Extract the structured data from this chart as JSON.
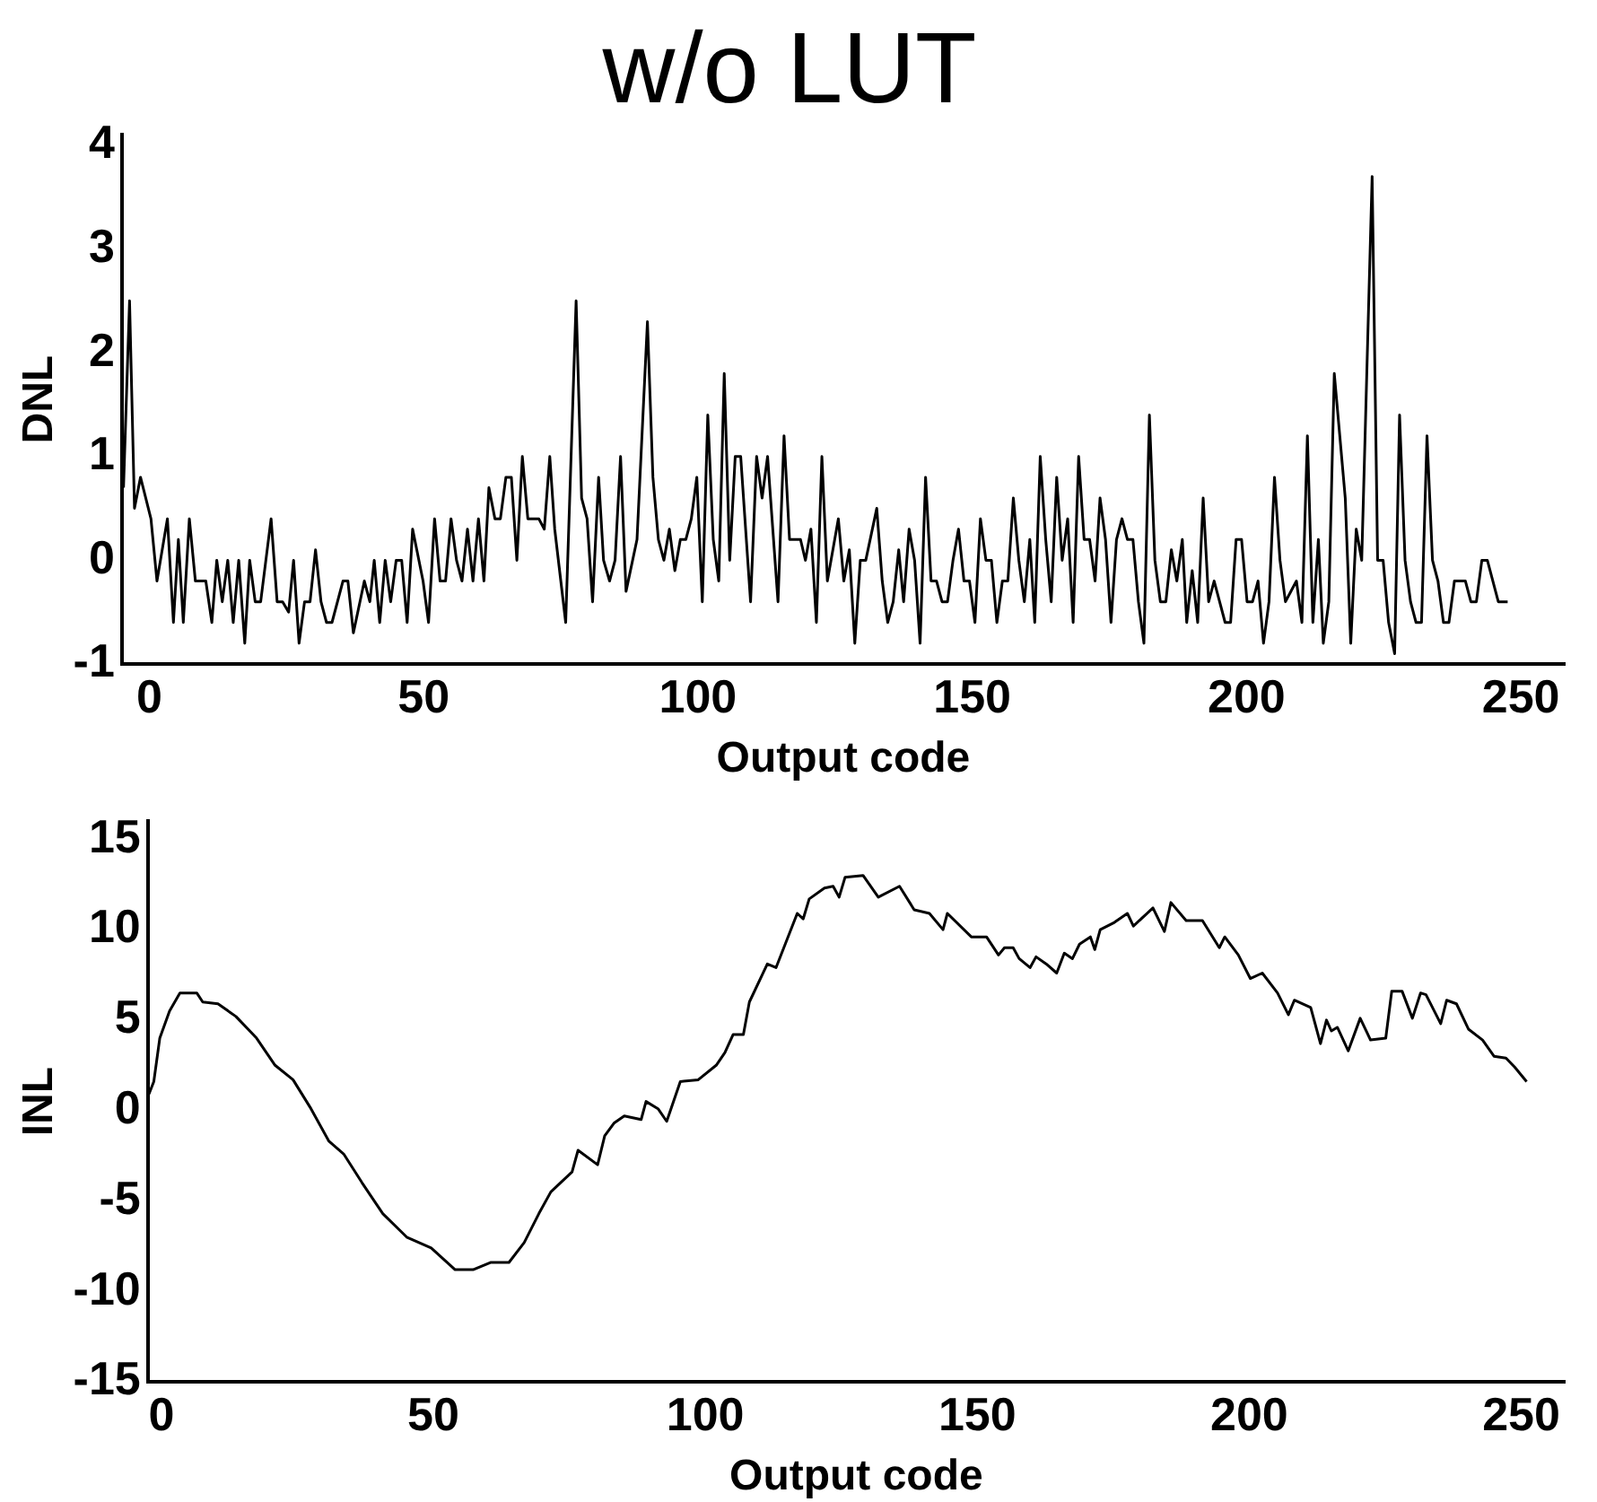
{
  "chart_data": [
    {
      "type": "line",
      "title": "w/o LUT",
      "xlabel": "Output code",
      "ylabel": "DNL",
      "color": "#000000",
      "x": [
        -4.7,
        -3.6,
        -2.7,
        -1.6,
        0.3,
        1.4,
        3.3,
        4.4,
        5.3,
        6.2,
        7.3,
        8.4,
        10.3,
        11.4,
        12.3,
        13.3,
        14.3,
        15.3,
        16.3,
        17.4,
        18.3,
        19.3,
        20.3,
        22.2,
        23.3,
        24.3,
        25.4,
        26.3,
        27.3,
        28.3,
        29.3,
        30.3,
        31.3,
        32.3,
        33.3,
        35.3,
        36.2,
        37.2,
        39.2,
        40.2,
        41.0,
        42.0,
        43.0,
        44.0,
        45.0,
        46.0,
        47.0,
        48.0,
        49.9,
        50.9,
        52.0,
        53.0,
        54.0,
        55.0,
        56.0,
        57.0,
        58.0,
        59.0,
        60.0,
        61.0,
        61.9,
        63.0,
        64.0,
        65.0,
        66.0,
        67.0,
        68.0,
        69.0,
        71.0,
        72.0,
        73.0,
        73.9,
        75.9,
        77.8,
        78.8,
        79.8,
        80.8,
        81.9,
        82.8,
        83.9,
        84.9,
        85.9,
        86.9,
        88.9,
        90.8,
        91.8,
        92.8,
        93.8,
        94.8,
        95.8,
        96.8,
        97.8,
        98.8,
        99.8,
        100.8,
        101.8,
        102.8,
        103.8,
        104.8,
        105.8,
        106.8,
        107.8,
        109.6,
        110.7,
        111.7,
        112.7,
        114.6,
        115.7,
        116.7,
        118.7,
        119.6,
        120.6,
        121.6,
        122.6,
        123.6,
        125.6,
        126.6,
        127.6,
        128.6,
        129.6,
        130.6,
        132.6,
        133.6,
        134.6,
        135.6,
        136.6,
        137.5,
        138.5,
        139.5,
        140.5,
        141.5,
        142.5,
        143.5,
        144.5,
        145.5,
        146.5,
        147.5,
        148.5,
        149.5,
        150.5,
        151.5,
        152.5,
        153.5,
        154.5,
        155.5,
        156.5,
        157.5,
        158.5,
        159.5,
        160.5,
        161.4,
        162.4,
        163.4,
        164.4,
        165.4,
        166.4,
        167.4,
        168.4,
        169.4,
        170.4,
        171.4,
        172.4,
        173.3,
        174.3,
        175.3,
        176.3,
        177.3,
        178.3,
        179.3,
        180.3,
        181.3,
        182.3,
        183.3,
        184.3,
        185.3,
        186.3,
        187.3,
        188.3,
        189.1,
        190.1,
        191.1,
        192.1,
        193.1,
        194.1,
        195.1,
        196.1,
        197.1,
        198.1,
        199.1,
        200.1,
        201.1,
        202.1,
        203.1,
        204.1,
        205.1,
        206.1,
        207.1,
        208.1,
        209.1,
        210.1,
        211.1,
        212.1,
        213.1,
        214.0,
        215.0,
        216.0,
        217.0,
        218.0,
        219.0,
        220.0,
        221.0,
        222.9,
        223.9,
        224.9,
        225.9,
        227.0,
        227.9,
        228.9,
        229.9,
        230.9,
        231.9,
        232.9,
        233.9,
        234.9,
        235.9,
        236.9,
        237.9,
        239.9,
        240.9,
        241.9,
        242.9,
        243.9,
        245.9,
        247.6
      ],
      "values": [
        0.7,
        2.5,
        0.5,
        0.8,
        0.4,
        -0.2,
        0.4,
        -0.6,
        0.2,
        -0.6,
        0.4,
        -0.2,
        -0.2,
        -0.6,
        0,
        -0.4,
        0,
        -0.6,
        0,
        -0.8,
        0,
        -0.4,
        -0.4,
        0.4,
        -0.4,
        -0.4,
        -0.5,
        0,
        -0.8,
        -0.4,
        -0.4,
        0.1,
        -0.4,
        -0.6,
        -0.6,
        -0.2,
        -0.2,
        -0.7,
        -0.2,
        -0.4,
        0,
        -0.6,
        0,
        -0.4,
        0,
        0,
        -0.6,
        0.3,
        -0.2,
        -0.6,
        0.4,
        -0.2,
        -0.2,
        0.4,
        0,
        -0.2,
        0.3,
        -0.2,
        0.4,
        -0.2,
        0.7,
        0.4,
        0.4,
        0.8,
        0.8,
        0,
        1,
        0.4,
        0.4,
        0.3,
        1,
        0.3,
        -0.6,
        2.5,
        0.6,
        0.4,
        -0.4,
        0.8,
        0,
        -0.2,
        0,
        1,
        -0.3,
        0.2,
        2.3,
        0.8,
        0.2,
        0,
        0.3,
        -0.1,
        0.2,
        0.2,
        0.4,
        0.8,
        -0.4,
        1.4,
        0.2,
        -0.2,
        1.8,
        0,
        1,
        1,
        -0.4,
        1,
        0.6,
        1,
        -0.4,
        1.2,
        0.2,
        0.2,
        0,
        0.3,
        -0.6,
        1,
        -0.2,
        0.4,
        -0.2,
        0.1,
        -0.8,
        0,
        0,
        0.5,
        -0.2,
        -0.6,
        -0.4,
        0.1,
        -0.4,
        0.3,
        0,
        -0.8,
        0.8,
        -0.2,
        -0.2,
        -0.4,
        -0.4,
        0,
        0.3,
        -0.2,
        -0.2,
        -0.6,
        0.4,
        0,
        0,
        -0.6,
        -0.2,
        -0.2,
        0.6,
        0,
        -0.4,
        0.2,
        -0.6,
        1,
        0.2,
        -0.4,
        0.8,
        0,
        0.4,
        -0.6,
        1,
        0.2,
        0.2,
        -0.2,
        0.6,
        0.2,
        -0.6,
        0.2,
        0.4,
        0.2,
        0.2,
        -0.4,
        -0.8,
        1.4,
        0,
        -0.4,
        -0.4,
        0.1,
        -0.2,
        0.2,
        -0.6,
        -0.1,
        -0.6,
        0.6,
        -0.4,
        -0.2,
        -0.4,
        -0.6,
        -0.6,
        0.2,
        0.2,
        -0.4,
        -0.4,
        -0.2,
        -0.8,
        -0.4,
        0.8,
        0,
        -0.4,
        -0.3,
        -0.2,
        -0.6,
        1.2,
        -0.6,
        0.2,
        -0.8,
        -0.4,
        1.8,
        1.2,
        0.6,
        -0.8,
        0.3,
        0,
        3.7,
        0,
        0,
        -0.6,
        -0.9,
        1.4,
        0,
        -0.4,
        -0.6,
        -0.6,
        1.2,
        0,
        -0.2,
        -0.6,
        -0.6,
        -0.2,
        -0.2,
        -0.4,
        -0.4,
        0,
        0,
        -0.4,
        -0.4
      ],
      "xlim": [
        -5,
        258
      ],
      "xticks": [
        0,
        50,
        100,
        150,
        200,
        250
      ],
      "ylim": [
        -1,
        4.1
      ],
      "yticks": [
        -1,
        0,
        1,
        2,
        3,
        4
      ],
      "grid": false,
      "legend": false
    },
    {
      "type": "line",
      "xlabel": "Output code",
      "ylabel": "INL",
      "color": "#000000",
      "x": [
        -2.3,
        -1.4,
        -0.3,
        1.5,
        3.4,
        6.5,
        7.6,
        10.4,
        13.7,
        17.5,
        20.9,
        24.2,
        27.5,
        30.8,
        33.5,
        36.9,
        40.7,
        45.1,
        49.6,
        54.0,
        57.3,
        60.6,
        63.9,
        66.7,
        69.4,
        71.6,
        75.5,
        76.6,
        80.2,
        81.5,
        83.2,
        85.1,
        88.2,
        89.1,
        91.3,
        92.9,
        95.4,
        98.7,
        102.0,
        103.6,
        105.1,
        107.0,
        108.1,
        111.4,
        113.0,
        116.9,
        118.0,
        119.1,
        121.9,
        123.5,
        124.6,
        125.7,
        129.0,
        131.8,
        135.7,
        138.4,
        141.2,
        143.7,
        144.5,
        148.9,
        151.7,
        153.9,
        155.0,
        156.6,
        157.7,
        159.7,
        160.8,
        162.7,
        164.6,
        166.0,
        167.5,
        168.8,
        170.8,
        171.6,
        172.6,
        175.2,
        177.6,
        178.7,
        182.3,
        184.4,
        185.6,
        188.4,
        191.4,
        194.5,
        195.5,
        198.0,
        200.2,
        202.4,
        205.2,
        207.2,
        208.3,
        211.3,
        213.1,
        214.2,
        215.1,
        216.2,
        218.2,
        220.4,
        222.3,
        225.1,
        226.2,
        228.1,
        230.0,
        231.5,
        232.5,
        235.2,
        236.3,
        238.1,
        240.3,
        242.9,
        245.0,
        247.2,
        248.8,
        251.0
      ],
      "values": [
        0.9,
        1.6,
        4.0,
        5.5,
        6.5,
        6.5,
        6.0,
        5.9,
        5.2,
        4.0,
        2.5,
        1.7,
        0.1,
        -1.7,
        -2.4,
        -4.0,
        -5.7,
        -7.0,
        -7.6,
        -8.8,
        -8.8,
        -8.4,
        -8.4,
        -7.3,
        -5.7,
        -4.5,
        -3.4,
        -2.2,
        -3.0,
        -1.4,
        -0.7,
        -0.3,
        -0.5,
        0.5,
        0.1,
        -0.6,
        1.6,
        1.7,
        2.5,
        3.2,
        4.2,
        4.2,
        6.0,
        8.1,
        7.9,
        10.9,
        10.6,
        11.7,
        12.3,
        12.4,
        11.8,
        12.9,
        13.0,
        11.8,
        12.4,
        11.1,
        10.9,
        10.0,
        10.9,
        9.6,
        9.6,
        8.6,
        9.0,
        9.0,
        8.4,
        7.9,
        8.5,
        8.1,
        7.6,
        8.7,
        8.4,
        9.2,
        9.6,
        8.9,
        10.0,
        10.4,
        10.9,
        10.2,
        11.2,
        9.9,
        11.5,
        10.5,
        10.5,
        9.0,
        9.6,
        8.6,
        7.3,
        7.6,
        6.5,
        5.3,
        6.1,
        5.7,
        3.7,
        5.0,
        4.4,
        4.6,
        3.3,
        5.1,
        3.9,
        4.0,
        6.6,
        6.6,
        5.1,
        6.5,
        6.4,
        4.8,
        6.1,
        5.9,
        4.5,
        3.9,
        3.0,
        2.9,
        2.4,
        1.6
      ],
      "xlim": [
        -2.5,
        258
      ],
      "xticks": [
        0,
        50,
        100,
        150,
        200,
        250
      ],
      "ylim": [
        -15,
        16
      ],
      "yticks": [
        -15,
        -10,
        -5,
        0,
        5,
        10,
        15
      ],
      "grid": false,
      "legend": false
    }
  ]
}
